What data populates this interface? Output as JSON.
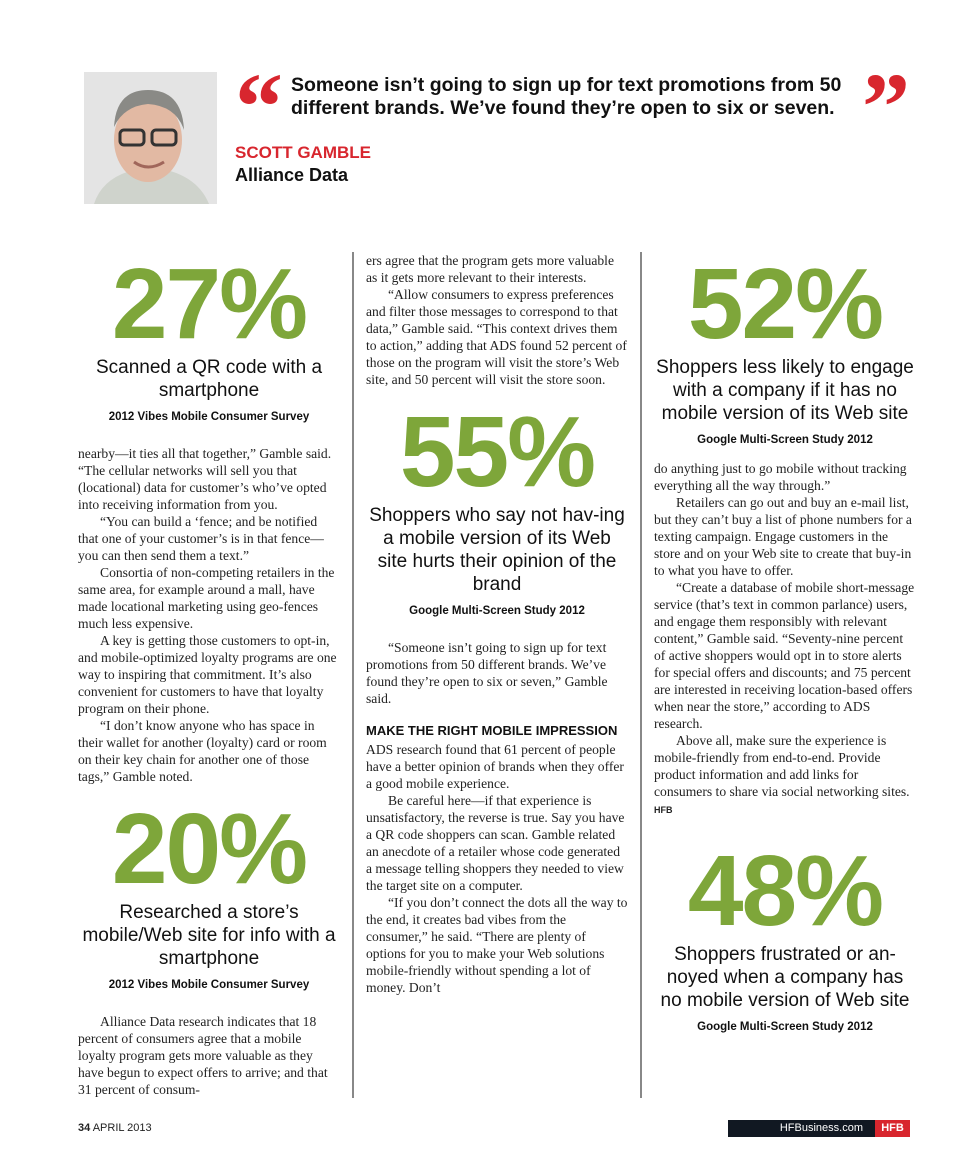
{
  "pull_quote": {
    "text": "Someone isn’t going to sign up for text promotions from 50 different brands. We’ve found they’re open to six or seven.",
    "open_mark": "“",
    "close_mark": "”",
    "name": "SCOTT GAMBLE",
    "company": "Alliance Data"
  },
  "stats": [
    {
      "value": "27%",
      "caption": "Scanned a QR code with a smartphone",
      "source": "2012 Vibes Mobile Consumer Survey"
    },
    {
      "value": "20%",
      "caption": "Researched a store’s mobile/Web site for info with a smartphone",
      "source": "2012 Vibes Mobile Consumer Survey"
    },
    {
      "value": "55%",
      "caption": "Shoppers who say not hav-ing a mobile version of its Web site hurts their opinion of the brand",
      "source": "Google Multi-Screen Study 2012"
    },
    {
      "value": "52%",
      "caption": "Shoppers less likely to engage with a company if it has no mobile version of its Web site",
      "source": "Google Multi-Screen Study 2012"
    },
    {
      "value": "48%",
      "caption": "Shoppers frustrated or an-noyed when a company has no mobile version of Web site",
      "source": "Google Multi-Screen Study 2012"
    }
  ],
  "col1": {
    "top": [
      "nearby—it ties all that together,” Gamble said. “The cellular networks will sell you that (locational) data for customer’s who’ve opted into receiving information from you.",
      "“You can build a ‘fence; and be notified that one of your customer’s is in that fence—you can then send them a text.”",
      "Consortia of non-competing retailers in the same area, for example around a mall, have made locational marketing using geo-fences much less expensive.",
      "A key is getting those customers to opt-in, and mobile-optimized loyalty programs are one way to inspiring that commitment. It’s also convenient for customers to have that loyalty program on their phone.",
      "“I don’t know anyone who has space in their wallet for another (loyalty) card or room on their key chain for another one of those tags,” Gamble noted."
    ],
    "bottom": [
      "Alliance Data research indicates that 18 percent of consumers agree that a mobile loyalty program gets more valuable as they have begun to expect offers to arrive; and that 31 percent of consum-"
    ]
  },
  "col2": {
    "top": [
      "ers agree that the program gets more valuable as it gets more relevant to their interests.",
      "“Allow consumers to express preferences and filter those messages to correspond to that data,” Gamble said. “This context drives them to action,” adding that ADS found 52 percent of those on the program will visit the store’s Web site, and 50 percent will visit the store soon."
    ],
    "bottom_intro": "“Someone isn’t going to sign up for text promotions from 50 different brands. We’ve found they’re open to six or seven,” Gamble said.",
    "heading": "MAKE THE RIGHT MOBILE IMPRESSION",
    "bottom": [
      "ADS research found that 61 percent of people have a better opinion of brands when they offer a good mobile experience.",
      "Be careful here—if that experience is unsatisfactory, the reverse is true. Say you have a QR code shoppers can scan. Gamble related an anecdote of a retailer whose code generated a message telling shoppers they needed to view the target site on a computer.",
      "“If you don’t connect the dots all the way to the end, it creates bad vibes from the consumer,” he said. “There are plenty of options for you to make your Web solutions mobile-friendly without spending a lot of money. Don’t"
    ]
  },
  "col3": {
    "paragraphs": [
      "do anything just to go mobile without tracking everything all the way through.”",
      "Retailers can go out and buy an e-mail list, but they can’t buy a list of phone numbers for a texting campaign. Engage customers in the store and on your Web site to create that buy-in to what you have to offer.",
      "“Create a database of mobile short-message service (that’s text in common parlance) users, and engage them responsibly with relevant content,” Gamble said. “Seventy-nine percent of active shoppers would opt in to store alerts for special offers and discounts; and 75 percent are interested in receiving location-based offers when near the store,” according to ADS research.",
      "Above all, make sure the experience is mobile-friendly from end-to-end. Provide product information and add links for consumers to share via social networking sites."
    ],
    "end_mark": "HFB"
  },
  "footer": {
    "page_number": "34",
    "issue": "APRIL 2013",
    "site": "HFBusiness.com",
    "brand": "HFB"
  },
  "colors": {
    "accent_green": "#7ea63a",
    "accent_red": "#d8262e"
  }
}
